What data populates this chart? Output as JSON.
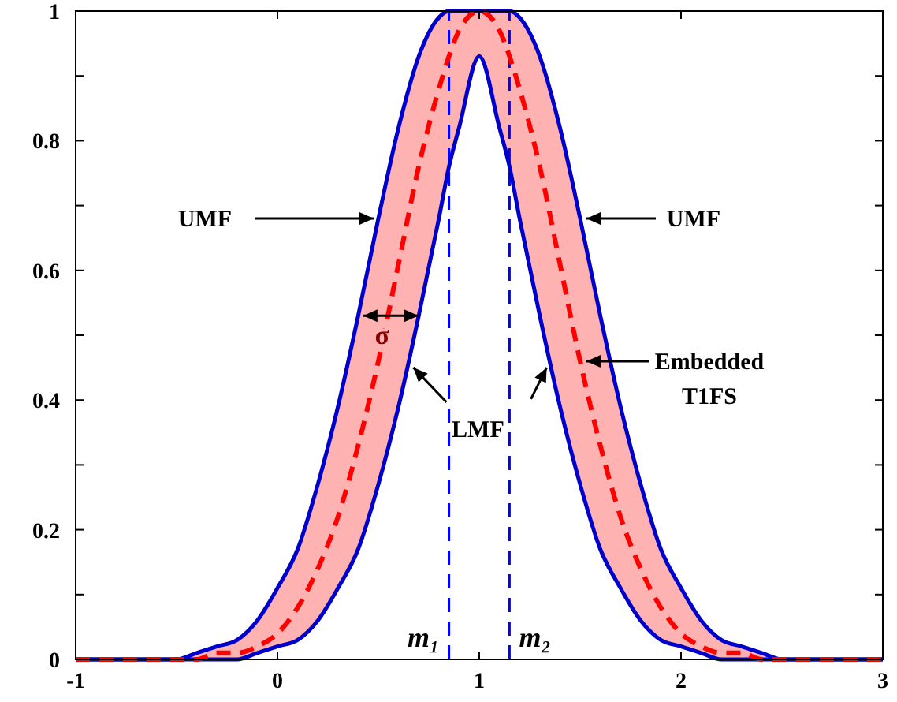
{
  "chart_data": {
    "type": "line",
    "xlim": [
      -1,
      3
    ],
    "ylim": [
      0,
      1
    ],
    "xticks": [
      -1,
      0,
      1,
      2,
      3
    ],
    "yticks": [
      0,
      {
        "value": 0.1,
        "label": null
      },
      0.2,
      {
        "value": 0.3,
        "label": null
      },
      0.4,
      {
        "value": 0.5,
        "label": null
      },
      0.6,
      {
        "value": 0.7,
        "label": null
      },
      0.8,
      {
        "value": 0.9,
        "label": null
      },
      1
    ],
    "x": [
      -1,
      -0.9,
      -0.8,
      -0.7,
      -0.6,
      -0.5,
      -0.4,
      -0.3,
      -0.2,
      -0.1,
      0,
      0.1,
      0.2,
      0.3,
      0.4,
      0.5,
      0.6,
      0.7,
      0.8,
      0.85,
      0.9,
      1,
      1.1,
      1.15,
      1.2,
      1.3,
      1.4,
      1.5,
      1.6,
      1.7,
      1.8,
      1.9,
      2,
      2.1,
      2.2,
      2.3,
      2.4,
      2.5,
      2.6,
      2.7,
      2.8,
      2.9,
      3
    ],
    "series": [
      {
        "color": "#0000cc",
        "values": [
          0,
          0,
          0,
          0,
          0,
          0,
          0.01,
          0.02,
          0.03,
          0.06,
          0.11,
          0.17,
          0.27,
          0.39,
          0.53,
          0.68,
          0.82,
          0.93,
          0.99,
          1,
          1,
          1,
          1,
          1,
          0.99,
          0.93,
          0.82,
          0.68,
          0.53,
          0.39,
          0.27,
          0.17,
          0.11,
          0.06,
          0.03,
          0.02,
          0.01,
          0,
          0,
          0,
          0,
          0,
          0
        ]
      },
      {
        "color": "#0000cc",
        "values": [
          0,
          0,
          0,
          0,
          0,
          0,
          0,
          0,
          0,
          0.01,
          0.02,
          0.03,
          0.06,
          0.11,
          0.17,
          0.27,
          0.39,
          0.53,
          0.68,
          0.76,
          0.82,
          0.93,
          0.82,
          0.76,
          0.68,
          0.53,
          0.39,
          0.27,
          0.17,
          0.11,
          0.06,
          0.03,
          0.02,
          0.01,
          0,
          0,
          0,
          0,
          0,
          0,
          0,
          0,
          0
        ]
      },
      {
        "color": "#ff0000",
        "line_style": "dashed",
        "values": [
          0,
          0,
          0,
          0,
          0,
          0,
          0,
          0.01,
          0.01,
          0.02,
          0.04,
          0.08,
          0.14,
          0.22,
          0.33,
          0.46,
          0.61,
          0.76,
          0.88,
          0.93,
          0.97,
          1,
          0.97,
          0.93,
          0.88,
          0.76,
          0.61,
          0.46,
          0.33,
          0.22,
          0.14,
          0.08,
          0.04,
          0.02,
          0.01,
          0.01,
          0,
          0,
          0,
          0,
          0,
          0,
          0
        ],
        "lower": [
          0,
          0,
          0,
          0,
          0,
          0,
          0,
          0,
          0,
          0.01,
          0.02,
          0.03,
          0.06,
          0.11,
          0.17,
          0.27,
          0.39,
          0.53,
          0.68,
          0.76,
          0.82,
          0.93,
          0.82,
          0.76,
          0.68,
          0.53,
          0.39,
          0.27,
          0.17,
          0.11,
          0.06,
          0.03,
          0.02,
          0.01,
          0,
          0,
          0,
          0,
          0,
          0,
          0,
          0,
          0
        ],
        "upper": [
          0,
          0,
          0,
          0,
          0,
          0,
          0.01,
          0.02,
          0.03,
          0.06,
          0.11,
          0.17,
          0.27,
          0.39,
          0.53,
          0.68,
          0.82,
          0.93,
          0.99,
          1,
          1,
          1,
          1,
          1,
          0.99,
          0.93,
          0.82,
          0.68,
          0.53,
          0.39,
          0.27,
          0.17,
          0.11,
          0.06,
          0.03,
          0.02,
          0.01,
          0,
          0,
          0,
          0,
          0,
          0
        ]
      }
    ],
    "ref_lines": [
      {
        "axis": "x",
        "value": 0.85,
        "label": "m₁",
        "color": "#0000ff",
        "line_style": "dashed"
      },
      {
        "axis": "x",
        "value": 1.15,
        "label": "m₂",
        "color": "#0000ff",
        "line_style": "dashed"
      }
    ],
    "annotations": [
      {
        "text": "UMF",
        "x": 0.5,
        "y": 0.68
      },
      {
        "text": "UMF",
        "x": 1.5,
        "y": 0.68
      },
      {
        "text": "Embedded T1FS",
        "x": 1.5,
        "y": 0.46
      },
      {
        "text": "LMF",
        "x": 0.65,
        "y": 0.46
      },
      {
        "text": "σ",
        "x": 0.55,
        "y": 0.53
      }
    ]
  }
}
